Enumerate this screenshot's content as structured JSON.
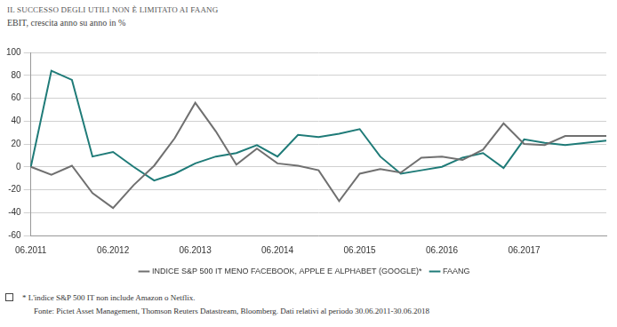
{
  "chart_data": {
    "type": "line",
    "title": "IL SUCCESSO DEGLI UTILI NON È LIMITATO AI FAANG",
    "subtitle": "EBIT, crescita anno su anno in %",
    "annotations": [
      "* L'indice S&P 500 IT non include Amazon o Netflix.",
      "Fonte: Pictet Asset Management, Thomson Reuters Datastream, Bloomberg. Dati relativi al periodo 30.06.2011-30.06.2018"
    ],
    "categories": [
      "06.2011",
      null,
      null,
      null,
      "06.2012",
      null,
      null,
      null,
      "06.2013",
      null,
      null,
      null,
      "06.2014",
      null,
      null,
      null,
      "06.2015",
      null,
      null,
      null,
      "06.2016",
      null,
      null,
      null,
      "06.2017",
      null,
      null,
      null,
      null
    ],
    "series": [
      {
        "name": "INDICE S&P 500 IT MENO FACEBOOK, APPLE E ALPHABET (GOOGLE)*",
        "color": "#707070",
        "values": [
          0,
          -7,
          1,
          -23,
          -36,
          -16,
          1,
          25,
          56,
          31,
          2,
          16,
          3,
          1,
          -3,
          -30,
          -6,
          -2,
          -5,
          8,
          9,
          6,
          15,
          38,
          20,
          19,
          27,
          27,
          27
        ]
      },
      {
        "name": "FAANG",
        "color": "#1f7b78",
        "values": [
          0,
          84,
          76,
          9,
          13,
          0,
          -12,
          -6,
          3,
          9,
          12,
          19,
          9,
          28,
          26,
          29,
          33,
          9,
          -6,
          -3,
          0,
          8,
          12,
          -1,
          24,
          21,
          19,
          21,
          23
        ]
      }
    ],
    "ylim": [
      -60,
      100
    ],
    "yticks": [
      -60,
      -40,
      -20,
      0,
      20,
      40,
      60,
      80,
      100
    ],
    "grid": true,
    "legend": "bottom"
  }
}
